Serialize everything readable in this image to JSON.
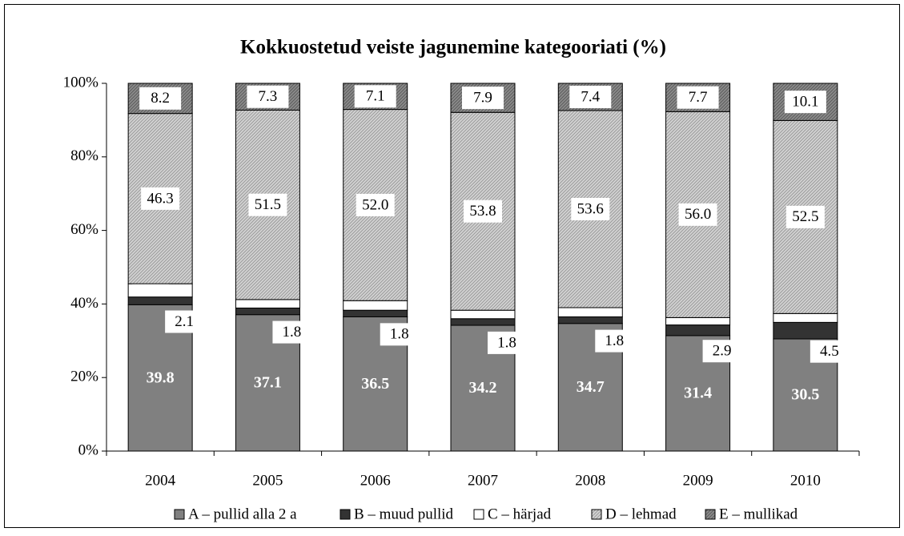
{
  "chart_data": {
    "type": "stacked_bar",
    "title": "Kokkuostetud veiste jagunemine kategooriati (%)",
    "categories": [
      "2004",
      "2005",
      "2006",
      "2007",
      "2008",
      "2009",
      "2010"
    ],
    "series": [
      {
        "name": "A – pullid alla 2 a",
        "color": "#808080",
        "values": [
          39.8,
          37.1,
          36.5,
          34.2,
          34.7,
          31.4,
          30.5
        ],
        "value_labels": [
          "39.8",
          "37.1",
          "36.5",
          "34.2",
          "34.7",
          "31.4",
          "30.5"
        ]
      },
      {
        "name": "B – muud pullid",
        "color": "#333333",
        "values": [
          2.1,
          1.8,
          1.8,
          1.8,
          1.8,
          2.9,
          4.5
        ],
        "value_labels": [
          "2.1",
          "1.8",
          "1.8",
          "1.8",
          "1.8",
          "2.9",
          "4.5"
        ]
      },
      {
        "name": "C – härjad",
        "color": "#ffffff",
        "values": [
          3.6,
          2.3,
          2.6,
          2.3,
          2.5,
          2.0,
          2.4
        ],
        "value_labels": [
          "3.6",
          "2.3",
          "2.6",
          "2.3",
          "2.5",
          "2.0",
          "2.4"
        ]
      },
      {
        "name": "D – lehmad",
        "color": "#d4d4d4",
        "values": [
          46.3,
          51.5,
          52.0,
          53.8,
          53.6,
          56.0,
          52.5
        ],
        "value_labels": [
          "46.3",
          "51.5",
          "52.0",
          "53.8",
          "53.6",
          "56.0",
          "52.5"
        ]
      },
      {
        "name": "E – mullikad",
        "color": "#8c8c8c",
        "values": [
          8.2,
          7.3,
          7.1,
          7.9,
          7.4,
          7.7,
          10.1
        ],
        "value_labels": [
          "8.2",
          "7.3",
          "7.1",
          "7.9",
          "7.4",
          "7.7",
          "10.1"
        ]
      }
    ],
    "ylim": [
      0,
      100
    ],
    "yticks": [
      {
        "value": 0,
        "label": "0%"
      },
      {
        "value": 20,
        "label": "20%"
      },
      {
        "value": 40,
        "label": "40%"
      },
      {
        "value": 60,
        "label": "60%"
      },
      {
        "value": 80,
        "label": "80%"
      },
      {
        "value": 100,
        "label": "100%"
      }
    ],
    "legend": "bottom"
  }
}
